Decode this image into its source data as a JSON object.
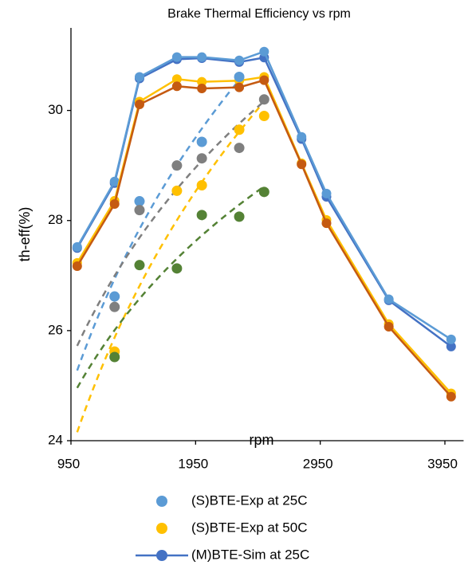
{
  "chart_data": {
    "type": "line",
    "title": "Brake Thermal Efficiency vs rpm",
    "x_label": "rpm",
    "y_label": "th-eff(%)",
    "xlim": [
      950,
      4100
    ],
    "ylim": [
      24,
      31.5
    ],
    "xticks": [
      950,
      1950,
      2950,
      3950
    ],
    "yticks": [
      24,
      26,
      28,
      30
    ],
    "grid": false,
    "series": [
      {
        "name": "(S)BTE-Exp at 25C",
        "mode": "scatter",
        "trendline": "log",
        "color": "#5b9bd5",
        "x": [
          1300,
          1500,
          2000,
          2300
        ],
        "values": [
          26.62,
          28.35,
          29.43,
          30.61
        ]
      },
      {
        "name": "(S)BTE-Exp at 50C",
        "mode": "scatter",
        "trendline": "log",
        "color": "#ffc000",
        "x": [
          1300,
          1800,
          2000,
          2300,
          2500
        ],
        "values": [
          25.62,
          28.54,
          28.64,
          29.65,
          29.9
        ]
      },
      {
        "name": "(M)BTE-Sim at 25C",
        "mode": "line",
        "color": "#4472c4",
        "x": [
          1000,
          1300,
          1500,
          1800,
          2000,
          2300,
          2500,
          2800,
          3000,
          3500,
          4000
        ],
        "values": [
          27.5,
          28.68,
          30.58,
          30.93,
          30.95,
          30.88,
          30.96,
          29.48,
          28.43,
          26.55,
          25.71
        ]
      },
      {
        "mode": "line",
        "color": "#5b9bd5",
        "x": [
          1000,
          1300,
          1500,
          1800,
          2000,
          2300,
          2500,
          2800,
          3000,
          3500,
          4000
        ],
        "values": [
          27.52,
          28.71,
          30.61,
          30.97,
          30.97,
          30.91,
          31.07,
          29.52,
          28.49,
          26.57,
          25.84
        ]
      },
      {
        "mode": "line",
        "color": "#ffc000",
        "x": [
          1000,
          1300,
          1500,
          1800,
          2000,
          2300,
          2500,
          2800,
          3000,
          3500,
          4000
        ],
        "values": [
          27.23,
          28.36,
          30.16,
          30.57,
          30.52,
          30.54,
          30.61,
          29.04,
          28.01,
          26.12,
          24.86
        ]
      },
      {
        "mode": "line",
        "color": "#c55a11",
        "x": [
          1000,
          1300,
          1500,
          1800,
          2000,
          2300,
          2500,
          2800,
          3000,
          3500,
          4000
        ],
        "values": [
          27.17,
          28.3,
          30.11,
          30.44,
          30.4,
          30.42,
          30.55,
          29.02,
          27.95,
          26.07,
          24.8
        ]
      },
      {
        "mode": "scatter",
        "trendline": "log",
        "color": "#7f7f7f",
        "x": [
          1300,
          1500,
          1800,
          2000,
          2300,
          2500
        ],
        "values": [
          26.43,
          28.19,
          29.0,
          29.13,
          29.32,
          30.2
        ]
      },
      {
        "mode": "scatter",
        "trendline": "log",
        "color": "#548235",
        "x": [
          1300,
          1500,
          1800,
          2000,
          2300,
          2500
        ],
        "values": [
          25.52,
          27.19,
          27.13,
          28.1,
          28.07,
          28.52
        ]
      }
    ]
  }
}
